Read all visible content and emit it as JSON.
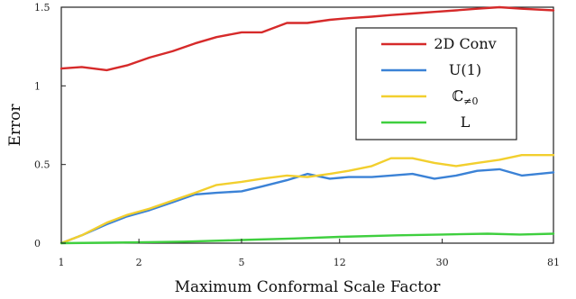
{
  "chart_data": {
    "type": "line",
    "title": "",
    "xlabel": "Maximum Conformal Scale Factor",
    "ylabel": "Error",
    "x_scale": "log",
    "xlim": [
      1,
      81
    ],
    "ylim": [
      0,
      1.5
    ],
    "x_ticks": [
      1,
      2,
      5,
      12,
      30,
      81
    ],
    "x_tick_labels": [
      "1",
      "2",
      "5",
      "12",
      "30",
      "81"
    ],
    "y_ticks": [
      0,
      0.5,
      1,
      1.5
    ],
    "y_tick_labels": [
      "0",
      "0.5",
      "1",
      "1.5"
    ],
    "grid": false,
    "legend": "top-right",
    "series": [
      {
        "name": "2D Conv",
        "color": "#d62a2a",
        "x": [
          1,
          1.2,
          1.5,
          1.8,
          2.2,
          2.7,
          3.3,
          4,
          5,
          6,
          7.5,
          9,
          11,
          13,
          16,
          19,
          23,
          28,
          34,
          41,
          50,
          61,
          81
        ],
        "y": [
          1.11,
          1.12,
          1.1,
          1.13,
          1.18,
          1.22,
          1.27,
          1.31,
          1.34,
          1.34,
          1.4,
          1.4,
          1.42,
          1.43,
          1.44,
          1.45,
          1.46,
          1.47,
          1.48,
          1.49,
          1.5,
          1.49,
          1.48
        ]
      },
      {
        "name": "U(1)",
        "color": "#3b82d6",
        "x": [
          1,
          1.2,
          1.5,
          1.8,
          2.2,
          2.7,
          3.3,
          4,
          5,
          6,
          7.5,
          9,
          11,
          13,
          16,
          19,
          23,
          28,
          34,
          41,
          50,
          61,
          81
        ],
        "y": [
          0.0,
          0.05,
          0.12,
          0.17,
          0.21,
          0.26,
          0.31,
          0.32,
          0.33,
          0.36,
          0.4,
          0.44,
          0.41,
          0.42,
          0.42,
          0.43,
          0.44,
          0.41,
          0.43,
          0.46,
          0.47,
          0.43,
          0.45
        ]
      },
      {
        "name": "ℂ≠0",
        "color": "#f2cf2e",
        "x": [
          1,
          1.2,
          1.5,
          1.8,
          2.2,
          2.7,
          3.3,
          4,
          5,
          6,
          7.5,
          9,
          11,
          13,
          16,
          19,
          23,
          28,
          34,
          41,
          50,
          61,
          81
        ],
        "y": [
          0.0,
          0.05,
          0.13,
          0.18,
          0.22,
          0.27,
          0.32,
          0.37,
          0.39,
          0.41,
          0.43,
          0.42,
          0.44,
          0.46,
          0.49,
          0.54,
          0.54,
          0.51,
          0.49,
          0.51,
          0.53,
          0.56,
          0.56
        ]
      },
      {
        "name": "L",
        "color": "#3fcf3f",
        "x": [
          1,
          2,
          3,
          5,
          8,
          12,
          20,
          30,
          45,
          60,
          81
        ],
        "y": [
          0.0,
          0.005,
          0.01,
          0.02,
          0.03,
          0.04,
          0.05,
          0.055,
          0.06,
          0.055,
          0.06
        ]
      }
    ]
  },
  "legend": {
    "entries": [
      {
        "label": "2D Conv",
        "color": "#d62a2a"
      },
      {
        "label": "U(1)",
        "color": "#3b82d6"
      },
      {
        "label_main": "ℂ",
        "label_sub": "≠0",
        "color": "#f2cf2e"
      },
      {
        "label": "L",
        "color": "#3fcf3f"
      }
    ]
  }
}
